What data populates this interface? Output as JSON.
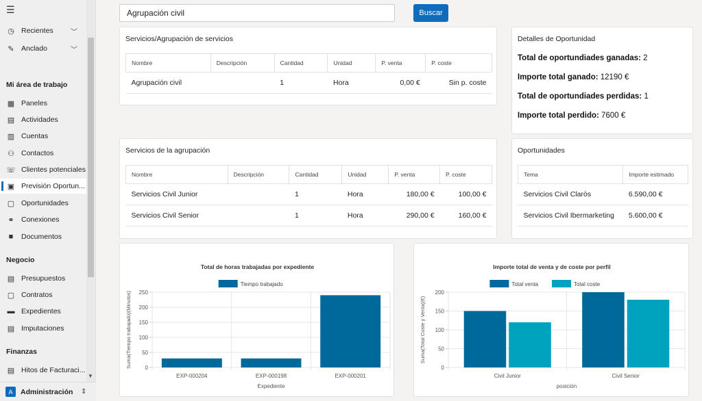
{
  "sidebar": {
    "recent_label": "Recientes",
    "pinned_label": "Anclado",
    "workspace_heading": "Mi área de trabajo",
    "workspace_items": [
      {
        "label": "Paneles",
        "icon": "dashboard-icon"
      },
      {
        "label": "Actividades",
        "icon": "activities-icon"
      },
      {
        "label": "Cuentas",
        "icon": "accounts-icon"
      },
      {
        "label": "Contactos",
        "icon": "contact-icon"
      },
      {
        "label": "Clientes potenciales",
        "icon": "leads-icon"
      },
      {
        "label": "Previsión Oportun...",
        "icon": "forecast-icon"
      },
      {
        "label": "Oportunidades",
        "icon": "opportunities-icon"
      },
      {
        "label": "Conexiones",
        "icon": "connections-icon"
      },
      {
        "label": "Documentos",
        "icon": "documents-icon"
      }
    ],
    "business_heading": "Negocio",
    "business_items": [
      {
        "label": "Presupuestos",
        "icon": "quotes-icon"
      },
      {
        "label": "Contratos",
        "icon": "contracts-icon"
      },
      {
        "label": "Expedientes",
        "icon": "folder-icon"
      },
      {
        "label": "Imputaciones",
        "icon": "timesheet-icon"
      }
    ],
    "finance_heading": "Finanzas",
    "finance_items": [
      {
        "label": "Hitos de Facturaci...",
        "icon": "invoice-icon"
      }
    ],
    "area_avatar": "A",
    "area_label": "Administración"
  },
  "search": {
    "value": "Agrupación civil",
    "button_label": "Buscar"
  },
  "services_card": {
    "title": "Servicios/Agrupación de servicios",
    "headers": [
      "Nombre",
      "Descripción",
      "Cantidad",
      "Unidad",
      "P. venta",
      "P. coste"
    ],
    "rows": [
      [
        "Agrupación civil",
        "",
        "1",
        "Hora",
        "0,00 €",
        "Sin p. coste"
      ]
    ]
  },
  "details_card": {
    "title": "Detalles de Oportunidad",
    "won_count_label": "Total de oportundiades ganadas:",
    "won_count": "2",
    "won_amount_label": "Importe total ganado:",
    "won_amount": "12190 €",
    "lost_count_label": "Total de oportundiades perdidas:",
    "lost_count": "1",
    "lost_amount_label": "Importe total perdido:",
    "lost_amount": "7600 €"
  },
  "group_services_card": {
    "title": "Servicios de la agrupación",
    "headers": [
      "Nombre",
      "Descripción",
      "Cantidad",
      "Unidad",
      "P. venta",
      "P. coste"
    ],
    "rows": [
      [
        "Servicios Civil Junior",
        "",
        "1",
        "Hora",
        "180,00 €",
        "100,00 €"
      ],
      [
        "Servicios Civil Senior",
        "",
        "1",
        "Hora",
        "290,00 €",
        "160,00 €"
      ]
    ]
  },
  "opportunities_card": {
    "title": "Oportunidades",
    "headers": [
      "Tema",
      "Importe estimado"
    ],
    "rows": [
      [
        "Servicios Civil Claròs",
        "6.590,00 €"
      ],
      [
        "Servicios Civil Ibermarketing",
        "5.600,00 €"
      ]
    ]
  },
  "chart_data": [
    {
      "type": "bar",
      "title": "Total de horas trabajadas por expediente",
      "xlabel": "Expediente",
      "ylabel": "Suma(Tiempo trabajado)(Minutos)",
      "categories": [
        "EXP-000204",
        "EXP-000198",
        "EXP-000201"
      ],
      "series": [
        {
          "name": "Tiempo trabajado",
          "values": [
            30,
            30,
            240
          ],
          "color": "#00699c"
        }
      ],
      "ylim": [
        0,
        250
      ],
      "yticks": [
        0,
        50,
        100,
        150,
        200,
        250
      ],
      "grid": true,
      "legend": "top"
    },
    {
      "type": "bar",
      "title": "Importe total de venta y de coste por perfil",
      "xlabel": "posición",
      "ylabel": "Suma(Total Coste y Venta)(€)",
      "categories": [
        "Civil Junior",
        "Civil Senior"
      ],
      "series": [
        {
          "name": "Total venta",
          "values": [
            150,
            200
          ],
          "color": "#00699c"
        },
        {
          "name": "Total coste",
          "values": [
            120,
            180
          ],
          "color": "#00a3be"
        }
      ],
      "ylim": [
        0,
        200
      ],
      "yticks": [
        0,
        50,
        100,
        150,
        200
      ],
      "grid": true,
      "legend": "top"
    }
  ]
}
